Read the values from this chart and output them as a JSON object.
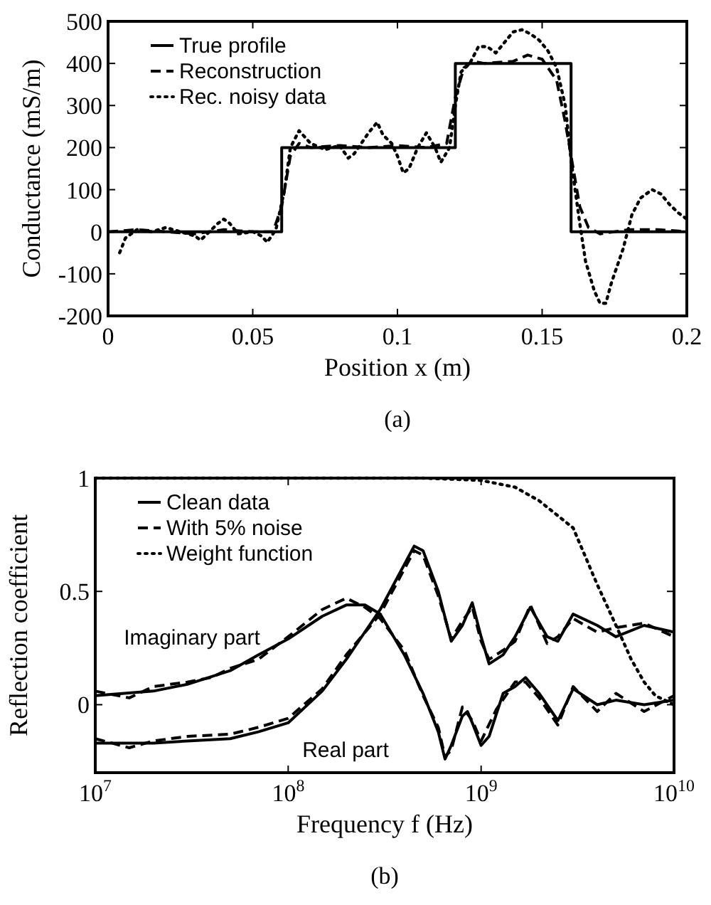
{
  "chart_data": [
    {
      "type": "line",
      "xlabel": "Position x (m)",
      "ylabel": "Conductance (mS/m)",
      "xlim": [
        0,
        0.2
      ],
      "xticks": [
        0,
        0.05,
        0.1,
        0.15,
        0.2
      ],
      "ylim": [
        -200,
        500
      ],
      "yticks": [
        -200,
        -100,
        0,
        100,
        200,
        300,
        400,
        500
      ],
      "grid": false,
      "legend": "top left",
      "annotations": [
        "(a)"
      ],
      "series": [
        {
          "name": "True profile",
          "color": "#000000",
          "line_style": "solid",
          "x": [
            0,
            0.06,
            0.06,
            0.12,
            0.12,
            0.16,
            0.16,
            0.2
          ],
          "values": [
            0,
            0,
            200,
            200,
            400,
            400,
            0,
            0
          ]
        },
        {
          "name": "Reconstruction",
          "color": "#000000",
          "line_style": "dashed",
          "x": [
            0,
            0.01,
            0.02,
            0.03,
            0.04,
            0.05,
            0.057,
            0.06,
            0.063,
            0.066,
            0.07,
            0.08,
            0.09,
            0.1,
            0.11,
            0.117,
            0.12,
            0.123,
            0.126,
            0.13,
            0.14,
            0.145,
            0.15,
            0.155,
            0.158,
            0.16,
            0.163,
            0.166,
            0.17,
            0.175,
            0.18,
            0.19,
            0.2
          ],
          "values": [
            0,
            5,
            0,
            -5,
            5,
            0,
            0,
            60,
            180,
            210,
            200,
            205,
            200,
            205,
            200,
            210,
            320,
            390,
            405,
            400,
            405,
            420,
            410,
            360,
            260,
            180,
            60,
            10,
            -5,
            0,
            5,
            5,
            0
          ]
        },
        {
          "name": "Rec. noisy data",
          "color": "#000000",
          "line_style": "dotted",
          "x": [
            0.004,
            0.006,
            0.01,
            0.015,
            0.02,
            0.025,
            0.03,
            0.032,
            0.035,
            0.038,
            0.04,
            0.042,
            0.045,
            0.05,
            0.053,
            0.055,
            0.058,
            0.061,
            0.063,
            0.066,
            0.07,
            0.075,
            0.08,
            0.083,
            0.085,
            0.09,
            0.093,
            0.095,
            0.098,
            0.1,
            0.102,
            0.104,
            0.107,
            0.11,
            0.113,
            0.115,
            0.118,
            0.12,
            0.122,
            0.125,
            0.128,
            0.131,
            0.134,
            0.137,
            0.14,
            0.143,
            0.146,
            0.149,
            0.152,
            0.155,
            0.158,
            0.16,
            0.163,
            0.165,
            0.168,
            0.17,
            0.172,
            0.174,
            0.176,
            0.178,
            0.181,
            0.184,
            0.188,
            0.191,
            0.194,
            0.197,
            0.2
          ],
          "values": [
            -50,
            -15,
            5,
            0,
            10,
            0,
            -10,
            -20,
            0,
            20,
            30,
            20,
            -5,
            0,
            -10,
            -25,
            5,
            100,
            200,
            240,
            210,
            195,
            205,
            175,
            185,
            235,
            260,
            230,
            210,
            180,
            140,
            150,
            200,
            235,
            200,
            165,
            200,
            300,
            380,
            400,
            440,
            440,
            425,
            450,
            475,
            480,
            470,
            455,
            430,
            390,
            300,
            170,
            20,
            -70,
            -140,
            -170,
            -170,
            -120,
            -80,
            -40,
            40,
            80,
            100,
            90,
            65,
            45,
            30
          ]
        }
      ]
    },
    {
      "type": "line",
      "xlabel": "Frequency f (Hz)",
      "ylabel": "Reflection coefficient",
      "log": "x",
      "xlim": [
        10000000,
        10000000000
      ],
      "xticks": [
        {
          "value": 10000000,
          "label": "10$^{7}$"
        },
        {
          "value": 100000000,
          "label": "10$^{8}$"
        },
        {
          "value": 1000000000,
          "label": "10$^{9}$"
        },
        {
          "value": 10000000000,
          "label": "10$^{10}$"
        }
      ],
      "ylim": [
        -0.3,
        1
      ],
      "yticks": [
        0,
        0.5,
        1
      ],
      "grid": false,
      "legend": "top left",
      "annotations": [
        "Imaginary part",
        "Real part",
        "(b)"
      ],
      "series": [
        {
          "name": "Clean data",
          "color": "#000000",
          "line_style": "solid",
          "x": [
            10000000,
            20000000,
            30000000,
            50000000,
            70000000,
            100000000,
            150000000,
            200000000,
            250000000,
            300000000,
            400000000,
            500000000,
            600000000,
            650000000,
            700000000,
            800000000,
            850000000,
            900000000,
            1000000000,
            1100000000,
            1300000000,
            1500000000,
            1700000000,
            2000000000,
            2500000000,
            3000000000,
            4000000000,
            5000000000,
            7000000000,
            10000000000
          ],
          "values": [
            0.04,
            0.06,
            0.09,
            0.15,
            0.22,
            0.29,
            0.39,
            0.44,
            0.44,
            0.4,
            0.22,
            0.05,
            -0.12,
            -0.24,
            -0.18,
            -0.05,
            -0.03,
            -0.08,
            -0.18,
            -0.14,
            0.05,
            0.08,
            0.12,
            0.05,
            -0.07,
            0.07,
            0,
            0.02,
            0,
            0.02
          ]
        },
        {
          "color": "#000000",
          "line_style": "solid",
          "x": [
            10000000,
            20000000,
            30000000,
            50000000,
            70000000,
            100000000,
            150000000,
            200000000,
            300000000,
            450000000,
            500000000,
            600000000,
            700000000,
            800000000,
            900000000,
            1000000000,
            1100000000,
            1300000000,
            1500000000,
            1800000000,
            2200000000,
            2500000000,
            3000000000,
            4000000000,
            5000000000,
            7000000000,
            10000000000
          ],
          "values": [
            -0.17,
            -0.17,
            -0.16,
            -0.15,
            -0.12,
            -0.08,
            0.06,
            0.2,
            0.42,
            0.7,
            0.68,
            0.5,
            0.28,
            0.35,
            0.45,
            0.3,
            0.18,
            0.22,
            0.3,
            0.43,
            0.3,
            0.28,
            0.4,
            0.35,
            0.3,
            0.35,
            0.32
          ]
        },
        {
          "name": "With 5% noise",
          "color": "#000000",
          "line_style": "dashed",
          "x": [
            10000000,
            15000000,
            20000000,
            30000000,
            40000000,
            50000000,
            70000000,
            100000000,
            150000000,
            200000000,
            250000000,
            300000000,
            400000000,
            500000000,
            600000000,
            650000000,
            700000000,
            800000000,
            900000000,
            1000000000,
            1200000000,
            1500000000,
            1700000000,
            2000000000,
            2500000000,
            3000000000,
            4000000000,
            5000000000,
            7000000000,
            10000000000
          ],
          "values": [
            0.06,
            0.03,
            0.08,
            0.1,
            0.12,
            0.16,
            0.2,
            0.3,
            0.42,
            0.47,
            0.43,
            0.38,
            0.24,
            0.04,
            -0.1,
            -0.23,
            -0.2,
            -0.01,
            -0.07,
            -0.16,
            -0.02,
            0.1,
            0.1,
            0.03,
            -0.09,
            0.08,
            -0.03,
            0.05,
            -0.03,
            0.04
          ]
        },
        {
          "color": "#000000",
          "line_style": "dashed",
          "x": [
            10000000,
            15000000,
            20000000,
            30000000,
            50000000,
            70000000,
            100000000,
            150000000,
            200000000,
            300000000,
            450000000,
            500000000,
            600000000,
            700000000,
            800000000,
            900000000,
            1000000000,
            1100000000,
            1300000000,
            1500000000,
            1800000000,
            2200000000,
            2500000000,
            3000000000,
            4000000000,
            5000000000,
            7000000000,
            10000000000
          ],
          "values": [
            -0.15,
            -0.19,
            -0.16,
            -0.14,
            -0.13,
            -0.1,
            -0.06,
            0.07,
            0.22,
            0.4,
            0.68,
            0.66,
            0.48,
            0.29,
            0.37,
            0.43,
            0.28,
            0.2,
            0.24,
            0.28,
            0.44,
            0.27,
            0.3,
            0.38,
            0.32,
            0.34,
            0.36,
            0.3
          ]
        },
        {
          "name": "Weight function",
          "color": "#000000",
          "line_style": "dotted",
          "x": [
            10000000,
            100000000,
            500000000,
            1000000000,
            1500000000,
            2000000000,
            3000000000,
            4000000000,
            5000000000,
            6000000000,
            7000000000,
            8000000000,
            10000000000
          ],
          "values": [
            1,
            1,
            1,
            0.99,
            0.96,
            0.9,
            0.78,
            0.53,
            0.35,
            0.2,
            0.1,
            0.04,
            0
          ]
        }
      ]
    }
  ]
}
